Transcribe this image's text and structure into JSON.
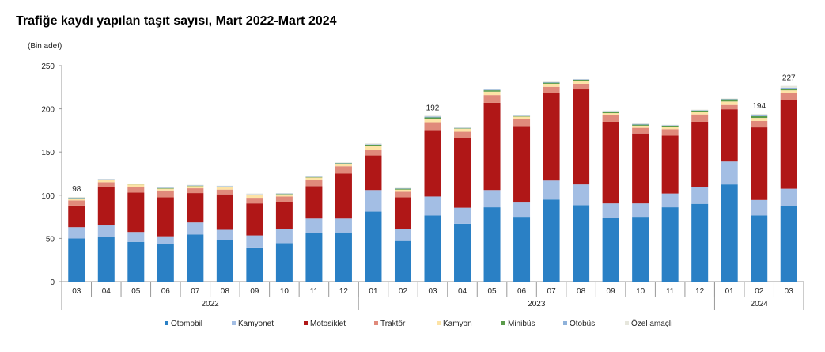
{
  "chart_data": {
    "type": "bar",
    "stacked": true,
    "title": "Trafiğe kaydı yapılan taşıt sayısı, Mart 2022-Mart 2024",
    "ylabel": "(Bin adet)",
    "ylim": [
      0,
      250
    ],
    "yticks": [
      0,
      50,
      100,
      150,
      200,
      250
    ],
    "grid": false,
    "legend_position": "bottom",
    "categories": [
      "03",
      "04",
      "05",
      "06",
      "07",
      "08",
      "09",
      "10",
      "11",
      "12",
      "01",
      "02",
      "03",
      "04",
      "05",
      "06",
      "07",
      "08",
      "09",
      "10",
      "11",
      "12",
      "01",
      "02",
      "03"
    ],
    "years": [
      {
        "label": "2022",
        "from": 0,
        "to": 9
      },
      {
        "label": "2023",
        "from": 10,
        "to": 21
      },
      {
        "label": "2024",
        "from": 22,
        "to": 24
      }
    ],
    "total_labels": [
      {
        "index": 0,
        "text": "98"
      },
      {
        "index": 12,
        "text": "192"
      },
      {
        "index": 23,
        "text": "194"
      },
      {
        "index": 24,
        "text": "227"
      }
    ],
    "series": [
      {
        "name": "Otomobil",
        "color": "#2a80c5",
        "values": [
          50,
          52,
          46,
          43.5,
          54.5,
          48,
          39.5,
          44.5,
          56,
          57,
          81,
          47,
          76.5,
          67,
          86,
          75,
          95,
          88.5,
          73.5,
          75,
          86,
          90,
          112.5,
          76.5,
          87.5
        ]
      },
      {
        "name": "Kamyonet",
        "color": "#a3bee4",
        "values": [
          13,
          13,
          11.5,
          9,
          14,
          12,
          14,
          16,
          17,
          16,
          25,
          14,
          22,
          18.5,
          20,
          16.5,
          22,
          24,
          17,
          15.5,
          16,
          19,
          26.5,
          18,
          20
        ]
      },
      {
        "name": "Motosiklet",
        "color": "#b01717",
        "values": [
          25,
          44,
          45.5,
          45,
          34,
          41,
          37,
          31.5,
          37.5,
          52,
          40,
          36.5,
          77,
          81,
          101,
          88.5,
          101,
          110,
          94.5,
          81,
          67,
          76,
          60.5,
          84,
          103
        ]
      },
      {
        "name": "Traktör",
        "color": "#e08a7b",
        "values": [
          6,
          6,
          6,
          8,
          5.5,
          5.5,
          6.5,
          6.5,
          7,
          8.5,
          6.5,
          6.5,
          9,
          7,
          9,
          8,
          7.5,
          6.5,
          7.5,
          6.5,
          7.5,
          8.5,
          5,
          7.5,
          8
        ]
      },
      {
        "name": "Kamyon",
        "color": "#fde3a6",
        "values": [
          2,
          2.5,
          3.5,
          2,
          2.5,
          2.5,
          3,
          2.5,
          3,
          3,
          4.5,
          2.5,
          4,
          3.5,
          4,
          3,
          3.5,
          3.3,
          2.5,
          2.5,
          2.5,
          3,
          4,
          3.5,
          3
        ]
      },
      {
        "name": "Minibüs",
        "color": "#5b9b4b",
        "values": [
          0.5,
          0.5,
          0.3,
          0.5,
          0.5,
          1,
          0.5,
          0.5,
          0.5,
          0.5,
          1.5,
          1,
          1.5,
          0.5,
          1.5,
          0.5,
          1.2,
          1.2,
          1.5,
          1.2,
          1.5,
          1.5,
          2.5,
          2,
          1.5
        ]
      },
      {
        "name": "Otobüs",
        "color": "#8fb2da",
        "values": [
          0.5,
          0.5,
          0.2,
          0.5,
          0.5,
          0.5,
          0.5,
          0.5,
          0.5,
          0.5,
          0.5,
          0.5,
          1,
          0.5,
          0.8,
          0.5,
          0.7,
          0.5,
          0.7,
          0.8,
          0.5,
          0.5,
          0.5,
          1,
          1.5
        ]
      },
      {
        "name": "Özel amaçlı",
        "color": "#e6e6dc",
        "values": [
          1,
          0.5,
          0.5,
          0.5,
          0.5,
          0.5,
          1,
          0.5,
          0.5,
          0.5,
          1,
          0.5,
          1,
          1,
          0.7,
          1,
          0.6,
          0.5,
          0.8,
          0.5,
          0.5,
          0.5,
          0.5,
          1.5,
          2
        ]
      }
    ]
  }
}
